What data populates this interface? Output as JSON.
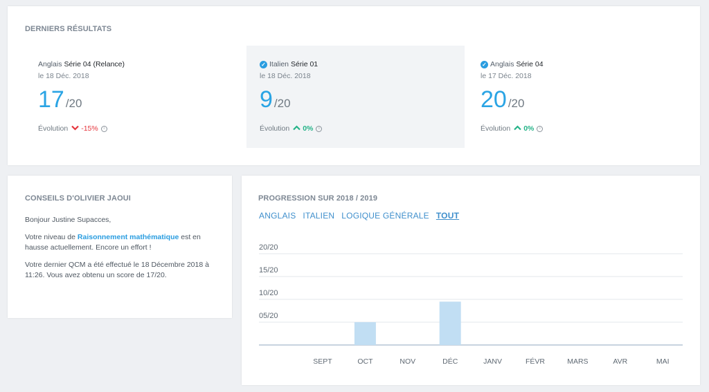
{
  "results": {
    "title": "DERNIERS RÉSULTATS",
    "items": [
      {
        "subject": "Anglais",
        "series": "Série 04 (Relance)",
        "date": "le 18 Déc. 2018",
        "score": "17",
        "denominator": "/20",
        "evolution_label": "Évolution",
        "evolution_value": "-15%",
        "trend": "down",
        "checked": false
      },
      {
        "subject": "Italien",
        "series": "Série 01",
        "date": "le 18 Déc. 2018",
        "score": "9",
        "denominator": "/20",
        "evolution_label": "Évolution",
        "evolution_value": "0%",
        "trend": "up",
        "checked": true
      },
      {
        "subject": "Anglais",
        "series": "Série 04",
        "date": "le 17 Déc. 2018",
        "score": "20",
        "denominator": "/20",
        "evolution_label": "Évolution",
        "evolution_value": "0%",
        "trend": "up",
        "checked": true
      }
    ]
  },
  "advice": {
    "title": "CONSEILS D'OLIVIER JAOUI",
    "greeting": "Bonjour Justine Supacces,",
    "p2_before": "Votre niveau de ",
    "p2_link": "Raisonnement mathématique",
    "p2_after": " est en hausse actuellement. Encore un effort !",
    "p3": "Votre dernier QCM a été effectué le 18 Décembre 2018 à 11:26. Vous avez obtenu un score de 17/20."
  },
  "progress": {
    "title": "PROGRESSION SUR 2018 / 2019",
    "tabs": [
      "ANGLAIS",
      "ITALIEN",
      "LOGIQUE GÉNÉRALE",
      "TOUT"
    ],
    "active_tab": 3
  },
  "colors": {
    "accent": "#2aa4e4",
    "bar": "#c1def3",
    "negative": "#e5343c",
    "positive": "#25b388"
  },
  "chart_data": {
    "type": "bar",
    "categories": [
      "SEPT",
      "OCT",
      "NOV",
      "DÉC",
      "JANV",
      "FÉVR",
      "MARS",
      "AVR",
      "MAI"
    ],
    "values": [
      null,
      5,
      null,
      9.5,
      null,
      null,
      null,
      null,
      null
    ],
    "yticks": [
      "05/20",
      "10/20",
      "15/20",
      "20/20"
    ],
    "ylim": [
      0,
      20
    ],
    "grid": true
  }
}
